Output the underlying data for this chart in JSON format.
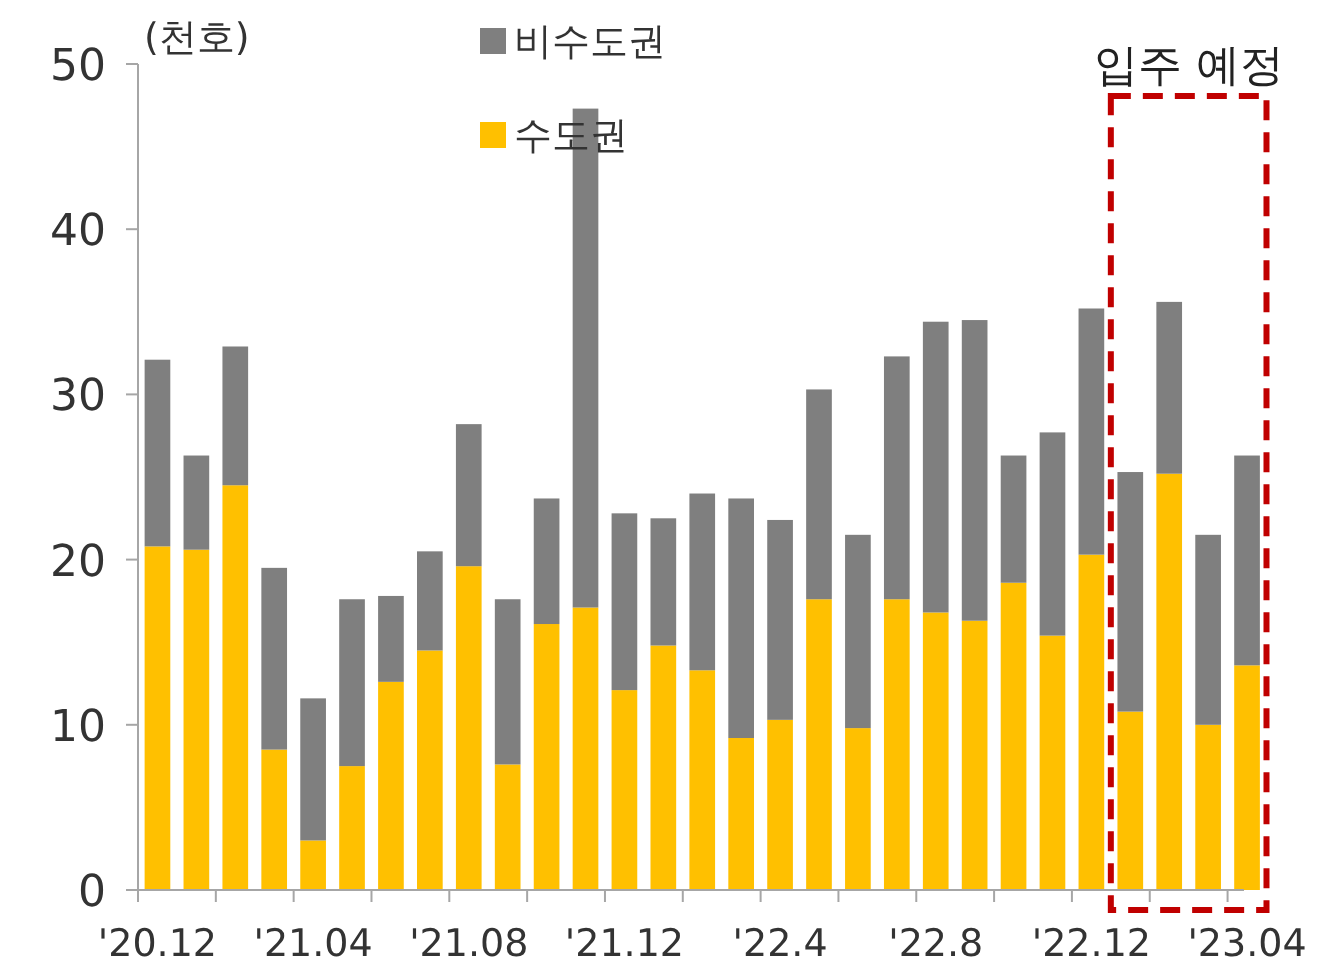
{
  "chart_data": {
    "type": "bar",
    "stacked": true,
    "ylabel": "(천호)",
    "categories": [
      "'20.12",
      null,
      null,
      null,
      "'21.04",
      null,
      null,
      null,
      "'21.08",
      null,
      null,
      null,
      "'21.12",
      null,
      null,
      null,
      "'22.4",
      null,
      null,
      null,
      "'22.8",
      null,
      null,
      null,
      "'22.12",
      null,
      null,
      null,
      "'23.04"
    ],
    "series": [
      {
        "name": "수도권",
        "color": "#ffc000",
        "values": [
          20.8,
          20.6,
          24.5,
          8.5,
          3.0,
          7.5,
          12.6,
          14.5,
          19.6,
          7.6,
          16.1,
          17.1,
          12.1,
          14.8,
          13.3,
          9.2,
          10.3,
          17.6,
          9.8,
          17.6,
          16.8,
          16.3,
          18.6,
          15.4,
          20.3,
          10.8,
          25.2,
          10.0,
          13.6
        ]
      },
      {
        "name": "비수도권",
        "color": "#7f7f7f",
        "values": [
          11.3,
          5.7,
          8.4,
          11.0,
          8.6,
          10.1,
          5.2,
          6.0,
          8.6,
          10.0,
          7.6,
          30.2,
          10.7,
          7.7,
          10.7,
          14.5,
          12.1,
          12.7,
          11.7,
          14.7,
          17.6,
          18.2,
          7.7,
          12.3,
          14.9,
          14.5,
          10.4,
          11.5,
          12.7
        ]
      }
    ],
    "ylim": [
      0,
      50
    ],
    "yticks": [
      0,
      10,
      20,
      30,
      40,
      50
    ],
    "legend": "top",
    "annotations": [
      "입주 예정"
    ]
  }
}
